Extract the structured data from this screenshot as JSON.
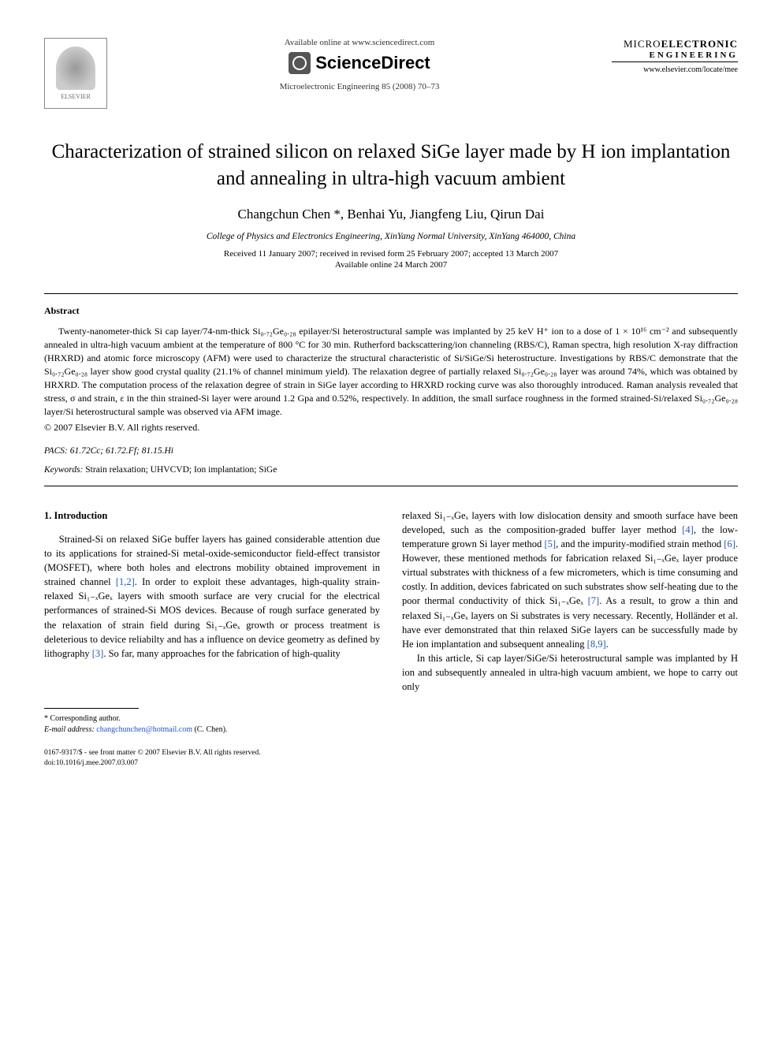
{
  "header": {
    "publisher_name": "ELSEVIER",
    "available_text": "Available online at www.sciencedirect.com",
    "sciencedirect_label": "ScienceDirect",
    "journal_ref": "Microelectronic Engineering 85 (2008) 70–73",
    "journal_logo_line1a": "MICRO",
    "journal_logo_line1b": "ELECTRONIC",
    "journal_logo_line2": "ENGINEERING",
    "journal_url": "www.elsevier.com/locate/mee"
  },
  "article": {
    "title": "Characterization of strained silicon on relaxed SiGe layer made by H ion implantation and annealing in ultra-high vacuum ambient",
    "authors": "Changchun Chen *, Benhai Yu, Jiangfeng Liu, Qirun Dai",
    "affiliation": "College of Physics and Electronics Engineering, XinYang Normal University, XinYang 464000, China",
    "dates_line1": "Received 11 January 2007; received in revised form 25 February 2007; accepted 13 March 2007",
    "dates_line2": "Available online 24 March 2007"
  },
  "abstract": {
    "heading": "Abstract",
    "body": "Twenty-nanometer-thick Si cap layer/74-nm-thick Si₀.₇₂Ge₀.₂₈ epilayer/Si heterostructural sample was implanted by 25 keV H⁺ ion to a dose of 1 × 10¹⁶ cm⁻² and subsequently annealed in ultra-high vacuum ambient at the temperature of 800 °C for 30 min. Rutherford backscattering/ion channeling (RBS/C), Raman spectra, high resolution X-ray diffraction (HRXRD) and atomic force microscopy (AFM) were used to characterize the structural characteristic of Si/SiGe/Si heterostructure. Investigations by RBS/C demonstrate that the Si₀.₇₂Ge₀.₂₈ layer show good crystal quality (21.1% of channel minimum yield). The relaxation degree of partially relaxed Si₀.₇₂Ge₀.₂₈ layer was around 74%, which was obtained by HRXRD. The computation process of the relaxation degree of strain in SiGe layer according to HRXRD rocking curve was also thoroughly introduced. Raman analysis revealed that stress, σ and strain, ε in the thin strained-Si layer were around 1.2 Gpa and 0.52%, respectively. In addition, the small surface roughness in the formed strained-Si/relaxed Si₀.₇₂Ge₀.₂₈ layer/Si heterostructural sample was observed via AFM image.",
    "copyright": "© 2007 Elsevier B.V. All rights reserved.",
    "pacs_label": "PACS:",
    "pacs_values": "61.72Cc; 61.72.Ff; 81.15.Hi",
    "keywords_label": "Keywords:",
    "keywords_values": "Strain relaxation; UHVCVD; Ion implantation; SiGe"
  },
  "body": {
    "section1_heading": "1. Introduction",
    "col1_para1_a": "Strained-Si on relaxed SiGe buffer layers has gained considerable attention due to its applications for strained-Si metal-oxide-semiconductor field-effect transistor (MOSFET), where both holes and electrons mobility obtained improvement in strained channel ",
    "ref_1_2": "[1,2]",
    "col1_para1_b": ". In order to exploit these advantages, high-quality strain-relaxed Si₁₋ₓGeₓ layers with smooth surface are very crucial for the electrical performances of strained-Si MOS devices. Because of rough surface generated by the relaxation of strain field during Si₁₋ₓGeₓ growth or process treatment is deleterious to device reliabilty and has a influence on device geometry as defined by lithography ",
    "ref_3": "[3]",
    "col1_para1_c": ". So far, many approaches for the fabrication of high-quality",
    "col2_para1_a": "relaxed Si₁₋ₓGeₓ layers with low dislocation density and smooth surface have been developed, such as the composition-graded buffer layer method ",
    "ref_4": "[4]",
    "col2_para1_b": ", the low-temperature grown Si layer method ",
    "ref_5": "[5]",
    "col2_para1_c": ", and the impurity-modified strain method ",
    "ref_6": "[6]",
    "col2_para1_d": ". However, these mentioned methods for fabrication relaxed Si₁₋ₓGeₓ layer produce virtual substrates with thickness of a few micrometers, which is time consuming and costly. In addition, devices fabricated on such substrates show self-heating due to the poor thermal conductivity of thick Si₁₋ₓGeₓ ",
    "ref_7": "[7]",
    "col2_para1_e": ". As a result, to grow a thin and relaxed Si₁₋ₓGeₓ layers on Si substrates is very necessary. Recently, Holländer et al. have ever demonstrated that thin relaxed SiGe layers can be successfully made by He ion implantation and subsequent annealing ",
    "ref_8_9": "[8,9]",
    "col2_para1_f": ".",
    "col2_para2": "In this article, Si cap layer/SiGe/Si heterostructural sample was implanted by H ion and subsequently annealed in ultra-high vacuum ambient, we hope to carry out only"
  },
  "footnote": {
    "corresponding": "* Corresponding author.",
    "email_label": "E-mail address:",
    "email": "changchunchen@hotmail.com",
    "email_suffix": "(C. Chen)."
  },
  "footer": {
    "line1": "0167-9317/$ - see front matter © 2007 Elsevier B.V. All rights reserved.",
    "line2": "doi:10.1016/j.mee.2007.03.007"
  },
  "colors": {
    "link": "#2158c9",
    "text": "#000000",
    "background": "#ffffff"
  }
}
